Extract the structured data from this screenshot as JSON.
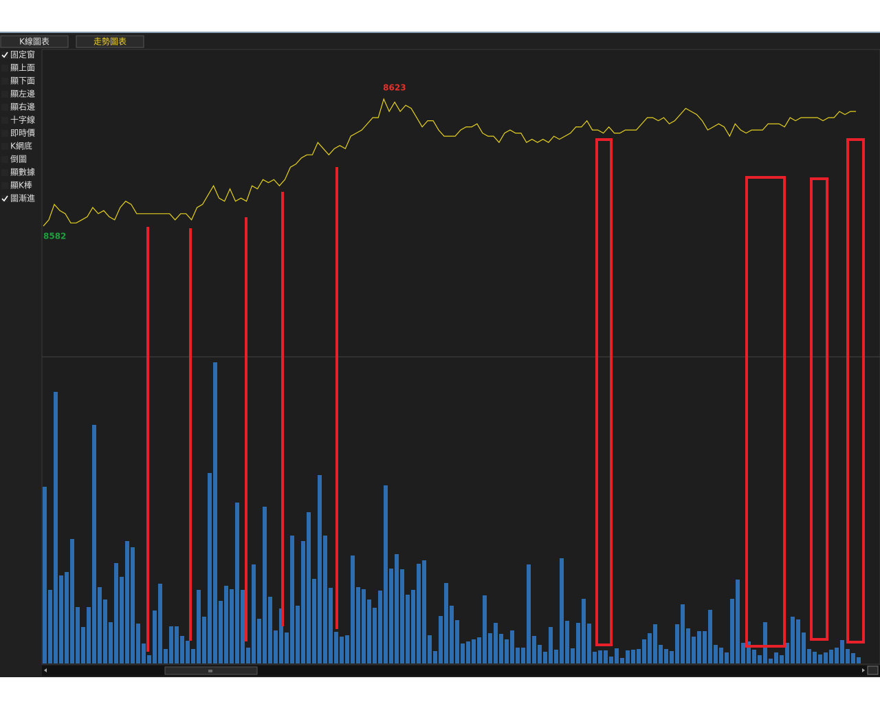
{
  "tabs": [
    {
      "label": "K線圖表",
      "active": false
    },
    {
      "label": "走勢圖表",
      "active": true
    }
  ],
  "options": [
    {
      "label": "固定窗",
      "checked": true
    },
    {
      "label": "顯上面",
      "checked": false
    },
    {
      "label": "顯下面",
      "checked": false
    },
    {
      "label": "顯左邊",
      "checked": false
    },
    {
      "label": "顯右邊",
      "checked": false
    },
    {
      "label": "十字線",
      "checked": false
    },
    {
      "label": "即時價",
      "checked": false
    },
    {
      "label": "K網底",
      "checked": false
    },
    {
      "label": "倒圖",
      "checked": false
    },
    {
      "label": "顯數據",
      "checked": false
    },
    {
      "label": "顯K棒",
      "checked": false
    },
    {
      "label": "圖漸進",
      "checked": true
    }
  ],
  "chart_data": [
    {
      "type": "line",
      "color": "#e6d21e",
      "ylim": [
        8540,
        8639
      ],
      "max_label": "8623",
      "min_label": "8582",
      "values": [
        8582,
        8584,
        8589,
        8587,
        8586,
        8583,
        8583,
        8584,
        8585,
        8588,
        8586,
        8587,
        8585,
        8584,
        8588,
        8590,
        8589,
        8586,
        8586,
        8586,
        8586,
        8586,
        8586,
        8586,
        8584,
        8586,
        8586,
        8584,
        8588,
        8589,
        8592,
        8595,
        8591,
        8590,
        8594,
        8590,
        8591,
        8590,
        8595,
        8594,
        8597,
        8596,
        8597,
        8595,
        8597,
        8601,
        8602,
        8604,
        8605,
        8605,
        8609,
        8607,
        8605,
        8607,
        8608,
        8607,
        8611,
        8612,
        8613,
        8615,
        8617,
        8617,
        8623,
        8619,
        8622,
        8619,
        8621,
        8620,
        8617,
        8614,
        8616,
        8616,
        8613,
        8611,
        8611,
        8611,
        8613,
        8614,
        8614,
        8615,
        8612,
        8611,
        8611,
        8609,
        8612,
        8613,
        8612,
        8612,
        8609,
        8610,
        8609,
        8610,
        8609,
        8611,
        8610,
        8611,
        8612,
        8614,
        8614,
        8616,
        8613,
        8613,
        8612,
        8614,
        8612,
        8612,
        8613,
        8613,
        8613,
        8615,
        8617,
        8617,
        8616,
        8617,
        8615,
        8616,
        8618,
        8620,
        8619,
        8618,
        8616,
        8613,
        8614,
        8615,
        8614,
        8611,
        8615,
        8613,
        8612,
        8613,
        8613,
        8613,
        8615,
        8615,
        8615,
        8614,
        8617,
        8616,
        8617,
        8617,
        8617,
        8617,
        8616,
        8617,
        8617,
        8619,
        8618,
        8619,
        8619
      ]
    },
    {
      "type": "bar",
      "color": "#2e6db0",
      "ylim": [
        0,
        445
      ],
      "values": [
        257,
        107,
        395,
        128,
        133,
        181,
        82,
        53,
        82,
        347,
        111,
        93,
        60,
        146,
        126,
        178,
        169,
        58,
        29,
        12,
        77,
        116,
        21,
        54,
        54,
        40,
        33,
        21,
        107,
        68,
        277,
        438,
        91,
        113,
        108,
        234,
        107,
        23,
        144,
        65,
        228,
        97,
        48,
        80,
        45,
        186,
        84,
        178,
        220,
        123,
        274,
        186,
        110,
        46,
        39,
        41,
        157,
        111,
        108,
        93,
        81,
        106,
        259,
        138,
        159,
        137,
        100,
        107,
        145,
        150,
        41,
        18,
        69,
        117,
        84,
        63,
        29,
        32,
        35,
        38,
        99,
        44,
        59,
        43,
        35,
        48,
        23,
        23,
        144,
        40,
        27,
        17,
        53,
        20,
        153,
        62,
        22,
        59,
        94,
        58,
        17,
        19,
        19,
        10,
        22,
        8,
        19,
        20,
        21,
        35,
        44,
        57,
        27,
        21,
        18,
        57,
        86,
        51,
        39,
        47,
        47,
        78,
        27,
        23,
        16,
        94,
        122,
        30,
        32,
        20,
        12,
        60,
        7,
        16,
        12,
        30,
        68,
        64,
        45,
        21,
        17,
        13,
        16,
        20,
        23,
        34,
        21,
        15,
        9
      ]
    }
  ]
}
